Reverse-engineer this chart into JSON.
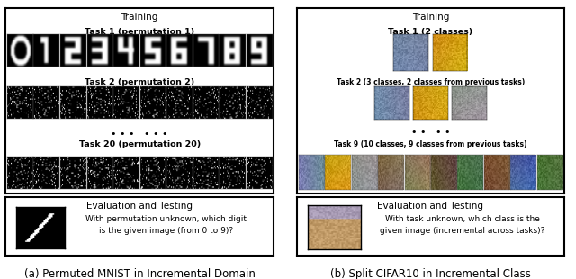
{
  "left_panel": {
    "training_title": "Training",
    "task1_label": "Task 1 (permutation 1)",
    "task2_label": "Task 2 (permutation 2)",
    "dots": "• • •   • • •",
    "task20_label": "Task 20 (permutation 20)",
    "eval_title": "Evaluation and Testing",
    "eval_text": "With permutation unknown, which digit\nis the given image (from 0 to 9)?",
    "caption": "(a) Permuted MNIST in Incremental Domain",
    "digits": [
      "0",
      "1",
      "2",
      "3",
      "4",
      "5",
      "6",
      "7",
      "8",
      "9"
    ],
    "num_images": 10
  },
  "right_panel": {
    "training_title": "Training",
    "task1_label": "Task 1 (2 classes)",
    "task2_label": "Task 2 (3 classes, 2 classes from previous tasks)",
    "dots": "• •   • •",
    "task9_label": "Task 9 (10 classes, 9 classes from previous tasks)",
    "eval_title": "Evaluation and Testing",
    "eval_text": "With task unknown, which class is the\ngiven image (incremental across tasks)?",
    "caption": "(b) Split CIFAR10 in Incremental Class",
    "num_task1": 2,
    "num_task2": 3,
    "num_task9": 10
  },
  "cifar_colors": [
    [
      0.45,
      0.52,
      0.65
    ],
    [
      0.82,
      0.62,
      0.08
    ],
    [
      0.58,
      0.58,
      0.58
    ],
    [
      0.5,
      0.42,
      0.32
    ],
    [
      0.55,
      0.48,
      0.35
    ],
    [
      0.38,
      0.3,
      0.22
    ],
    [
      0.28,
      0.45,
      0.28
    ],
    [
      0.48,
      0.32,
      0.2
    ],
    [
      0.28,
      0.38,
      0.65
    ],
    [
      0.3,
      0.45,
      0.22
    ]
  ],
  "bg_color": "#ffffff"
}
